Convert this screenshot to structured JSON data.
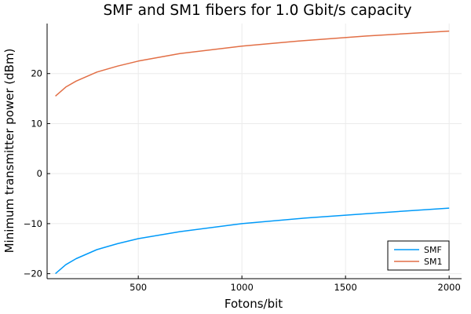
{
  "chart_data": {
    "type": "line",
    "title": "SMF and SM1 fibers for 1.0 Gbit/s capacity",
    "xlabel": "Fotons/bit",
    "ylabel": "Minimum transmitter power (dBm)",
    "xlim": [
      60,
      2060
    ],
    "ylim": [
      -21,
      30
    ],
    "x_ticks": [
      500,
      1000,
      1500,
      2000
    ],
    "x_tick_labels": [
      "500",
      "1000",
      "1500",
      "2000"
    ],
    "y_ticks": [
      -20,
      -10,
      0,
      10,
      20
    ],
    "y_tick_labels": [
      "−20",
      "−10",
      "0",
      "10",
      "20"
    ],
    "grid": true,
    "legend_position": "bottom-right",
    "series": [
      {
        "name": "SMF",
        "color": "#009af9",
        "x": [
          100,
          150,
          200,
          300,
          400,
          500,
          700,
          1000,
          1300,
          1600,
          2000
        ],
        "y": [
          -20.0,
          -18.2,
          -17.0,
          -15.2,
          -14.0,
          -13.0,
          -11.6,
          -10.0,
          -8.9,
          -8.0,
          -6.9
        ]
      },
      {
        "name": "SM1",
        "color": "#e26f46",
        "x": [
          100,
          150,
          200,
          300,
          400,
          500,
          700,
          1000,
          1300,
          1600,
          2000
        ],
        "y": [
          15.5,
          17.3,
          18.5,
          20.3,
          21.5,
          22.5,
          24.0,
          25.5,
          26.6,
          27.5,
          28.5
        ]
      }
    ]
  }
}
